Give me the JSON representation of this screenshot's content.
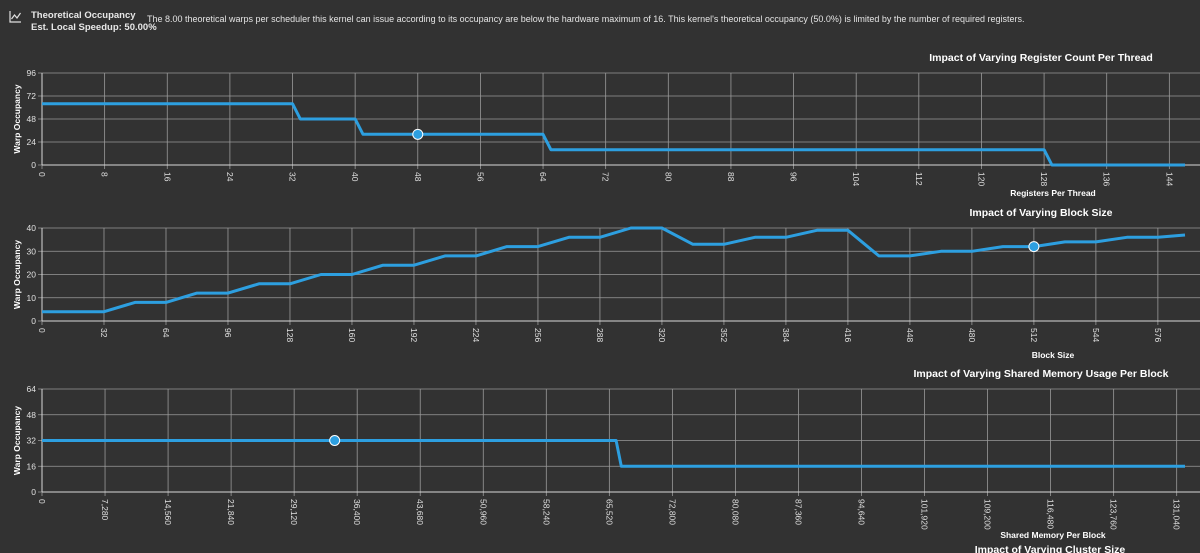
{
  "header": {
    "icon": "chart-icon",
    "title": "Theoretical Occupancy",
    "speedup": "Est. Local Speedup: 50.00%",
    "description": "The 8.00 theoretical warps per scheduler this kernel can issue according to its occupancy are below the hardware maximum of 16. This kernel's theoretical occupancy (50.0%) is limited by the number of required registers."
  },
  "colors": {
    "line": "#2d9fe0",
    "marker": "#2d9fe0",
    "grid": "#9a9a9a",
    "background": "#323232"
  },
  "chart_data": [
    {
      "type": "line",
      "title": "Impact of Varying Register Count Per Thread",
      "xlabel": "Registers Per Thread",
      "ylabel": "Warp Occupancy",
      "xlim": [
        0,
        146
      ],
      "ylim": [
        0,
        96
      ],
      "xticks": [
        0,
        8,
        16,
        24,
        32,
        40,
        48,
        56,
        64,
        72,
        80,
        88,
        96,
        104,
        112,
        120,
        128,
        136,
        144
      ],
      "xtick_labels": [
        "0",
        "8",
        "16",
        "24",
        "32",
        "40",
        "48",
        "56",
        "64",
        "72",
        "80",
        "88",
        "96",
        "104",
        "112",
        "120",
        "128",
        "136",
        "144"
      ],
      "yticks": [
        0,
        24,
        48,
        72,
        96
      ],
      "ytick_labels": [
        "0",
        "24",
        "48",
        "72",
        "96"
      ],
      "grid": true,
      "x": [
        0,
        32,
        33,
        40,
        41,
        64,
        65,
        128,
        129,
        146
      ],
      "y": [
        64,
        64,
        48,
        48,
        32,
        32,
        16,
        16,
        0,
        0
      ],
      "marker": {
        "x": 48,
        "y": 32
      }
    },
    {
      "type": "line",
      "title": "Impact of Varying Block Size",
      "xlabel": "Block Size",
      "ylabel": "Warp Occupancy",
      "xlim": [
        0,
        590
      ],
      "ylim": [
        0,
        40
      ],
      "xticks": [
        0,
        32,
        64,
        96,
        128,
        160,
        192,
        224,
        256,
        288,
        320,
        352,
        384,
        416,
        448,
        480,
        512,
        544,
        576
      ],
      "xtick_labels": [
        "0",
        "32",
        "64",
        "96",
        "128",
        "160",
        "192",
        "224",
        "256",
        "288",
        "320",
        "352",
        "384",
        "416",
        "448",
        "480",
        "512",
        "544",
        "576"
      ],
      "yticks": [
        0,
        10,
        20,
        30,
        40
      ],
      "ytick_labels": [
        "0",
        "10",
        "20",
        "30",
        "40"
      ],
      "grid": true,
      "x": [
        0,
        32,
        48,
        64,
        80,
        96,
        112,
        128,
        144,
        160,
        176,
        192,
        208,
        224,
        240,
        256,
        272,
        288,
        304,
        320,
        336,
        352,
        368,
        384,
        400,
        416,
        432,
        448,
        464,
        480,
        496,
        512,
        528,
        544,
        560,
        576,
        590
      ],
      "y": [
        4,
        4,
        8,
        8,
        12,
        12,
        16,
        16,
        20,
        20,
        24,
        24,
        28,
        28,
        32,
        32,
        36,
        36,
        40,
        40,
        33,
        33,
        36,
        36,
        39,
        39,
        28,
        28,
        30,
        30,
        32,
        32,
        34,
        34,
        36,
        36,
        37
      ],
      "marker": {
        "x": 512,
        "y": 32
      }
    },
    {
      "type": "line",
      "title": "Impact of Varying Shared Memory Usage Per Block",
      "xlabel": "Shared Memory Per Block",
      "ylabel": "Warp Occupancy",
      "xlim": [
        0,
        132000
      ],
      "ylim": [
        0,
        64
      ],
      "xticks": [
        0,
        7280,
        14560,
        21840,
        29120,
        36400,
        43680,
        50960,
        58240,
        65520,
        72800,
        80080,
        87360,
        94640,
        101920,
        109200,
        116480,
        123760,
        131040
      ],
      "xtick_labels": [
        "0",
        "7,280",
        "14,560",
        "21,840",
        "29,120",
        "36,400",
        "43,680",
        "50,960",
        "58,240",
        "65,520",
        "72,800",
        "80,080",
        "87,360",
        "94,640",
        "101,920",
        "109,200",
        "116,480",
        "123,760",
        "131,040"
      ],
      "yticks": [
        0,
        16,
        32,
        48,
        64
      ],
      "ytick_labels": [
        "0",
        "16",
        "32",
        "48",
        "64"
      ],
      "grid": true,
      "x": [
        0,
        66300,
        66900,
        132000
      ],
      "y": [
        32,
        32,
        16,
        16
      ],
      "marker": {
        "x": 33800,
        "y": 32
      }
    },
    {
      "type": "line",
      "title": "Impact of Varying Cluster Size"
    }
  ]
}
